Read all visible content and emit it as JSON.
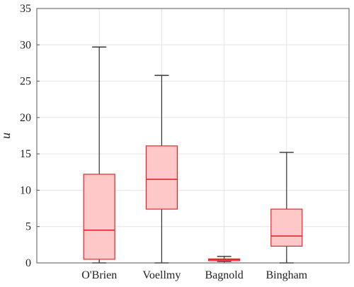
{
  "chart_data": {
    "type": "box",
    "ylabel": "u",
    "xlabel": "",
    "title": "",
    "ylim": [
      0,
      35
    ],
    "yticks": [
      0,
      5,
      10,
      15,
      20,
      25,
      30,
      35
    ],
    "grid": true,
    "categories": [
      "O'Brien",
      "Voellmy",
      "Bagnold",
      "Bingham"
    ],
    "boxes": [
      {
        "name": "O'Brien",
        "min": 0,
        "q1": 0.5,
        "median": 4.5,
        "q3": 12.2,
        "max": 29.7
      },
      {
        "name": "Voellmy",
        "min": 0,
        "q1": 7.4,
        "median": 11.5,
        "q3": 16.1,
        "max": 25.8
      },
      {
        "name": "Bagnold",
        "min": 0.2,
        "q1": 0.3,
        "median": 0.45,
        "q3": 0.55,
        "max": 0.9
      },
      {
        "name": "Bingham",
        "min": 0,
        "q1": 2.3,
        "median": 3.7,
        "q3": 7.4,
        "max": 15.2
      }
    ],
    "colors": {
      "box_fill": "#ffc8c8",
      "box_edge": "#e8242a",
      "median": "#e8242a",
      "whisker": "#333333",
      "grid": "#e4e4e4",
      "axis": "#555555"
    }
  }
}
